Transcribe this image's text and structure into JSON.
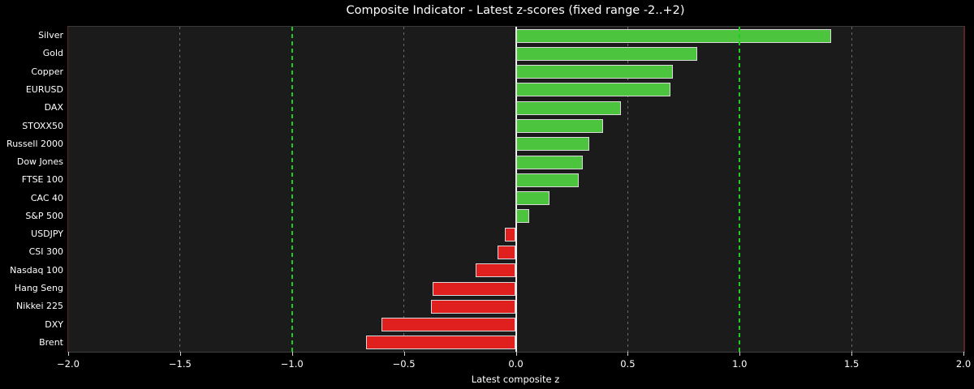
{
  "figure": {
    "background": "#000000",
    "plot_background": "#1b1b1b"
  },
  "chart_data": {
    "type": "bar",
    "orientation": "horizontal",
    "title": "Composite Indicator - Latest z-scores (fixed range -2..+2)",
    "xlabel": "Latest composite z",
    "xlim": [
      -2,
      2
    ],
    "categories": [
      "Silver",
      "Gold",
      "Copper",
      "EURUSD",
      "DAX",
      "STOXX50",
      "Russell 2000",
      "Dow Jones",
      "FTSE 100",
      "CAC 40",
      "S&P 500",
      "USDJPY",
      "CSI 300",
      "Nasdaq 100",
      "Hang Seng",
      "Nikkei 225",
      "DXY",
      "Brent"
    ],
    "values": [
      1.41,
      0.81,
      0.7,
      0.69,
      0.47,
      0.39,
      0.33,
      0.3,
      0.28,
      0.15,
      0.06,
      -0.05,
      -0.08,
      -0.18,
      -0.37,
      -0.38,
      -0.6,
      -0.67
    ],
    "x_ticks": [
      -2.0,
      -1.5,
      -1.0,
      -0.5,
      0.0,
      0.5,
      1.0,
      1.5,
      2.0
    ],
    "x_tick_labels": [
      "−2.0",
      "−1.5",
      "−1.0",
      "−0.5",
      "0.0",
      "0.5",
      "1.0",
      "1.5",
      "2.0"
    ],
    "grid": "vertical dashed gridlines at 0.5 intervals",
    "legend": "none",
    "reference_lines": [
      {
        "x": -1.0,
        "style": "dashed",
        "color": "#1ecb1e"
      },
      {
        "x": 1.0,
        "style": "dashed",
        "color": "#1ecb1e"
      },
      {
        "x": 0.0,
        "style": "solid",
        "color": "#f0f0f0"
      }
    ],
    "colors": {
      "positive_bar": "#4cc43e",
      "negative_bar": "#e01f1f",
      "bar_edge": "#d9d9d9",
      "gridline": "#6a6a6a",
      "threshold_line": "#1ecb1e",
      "zero_line": "#f0f0f0",
      "text": "#ffffff",
      "side_spine": "#5b241e",
      "top_bottom_spine": "#3a3a3a"
    }
  }
}
